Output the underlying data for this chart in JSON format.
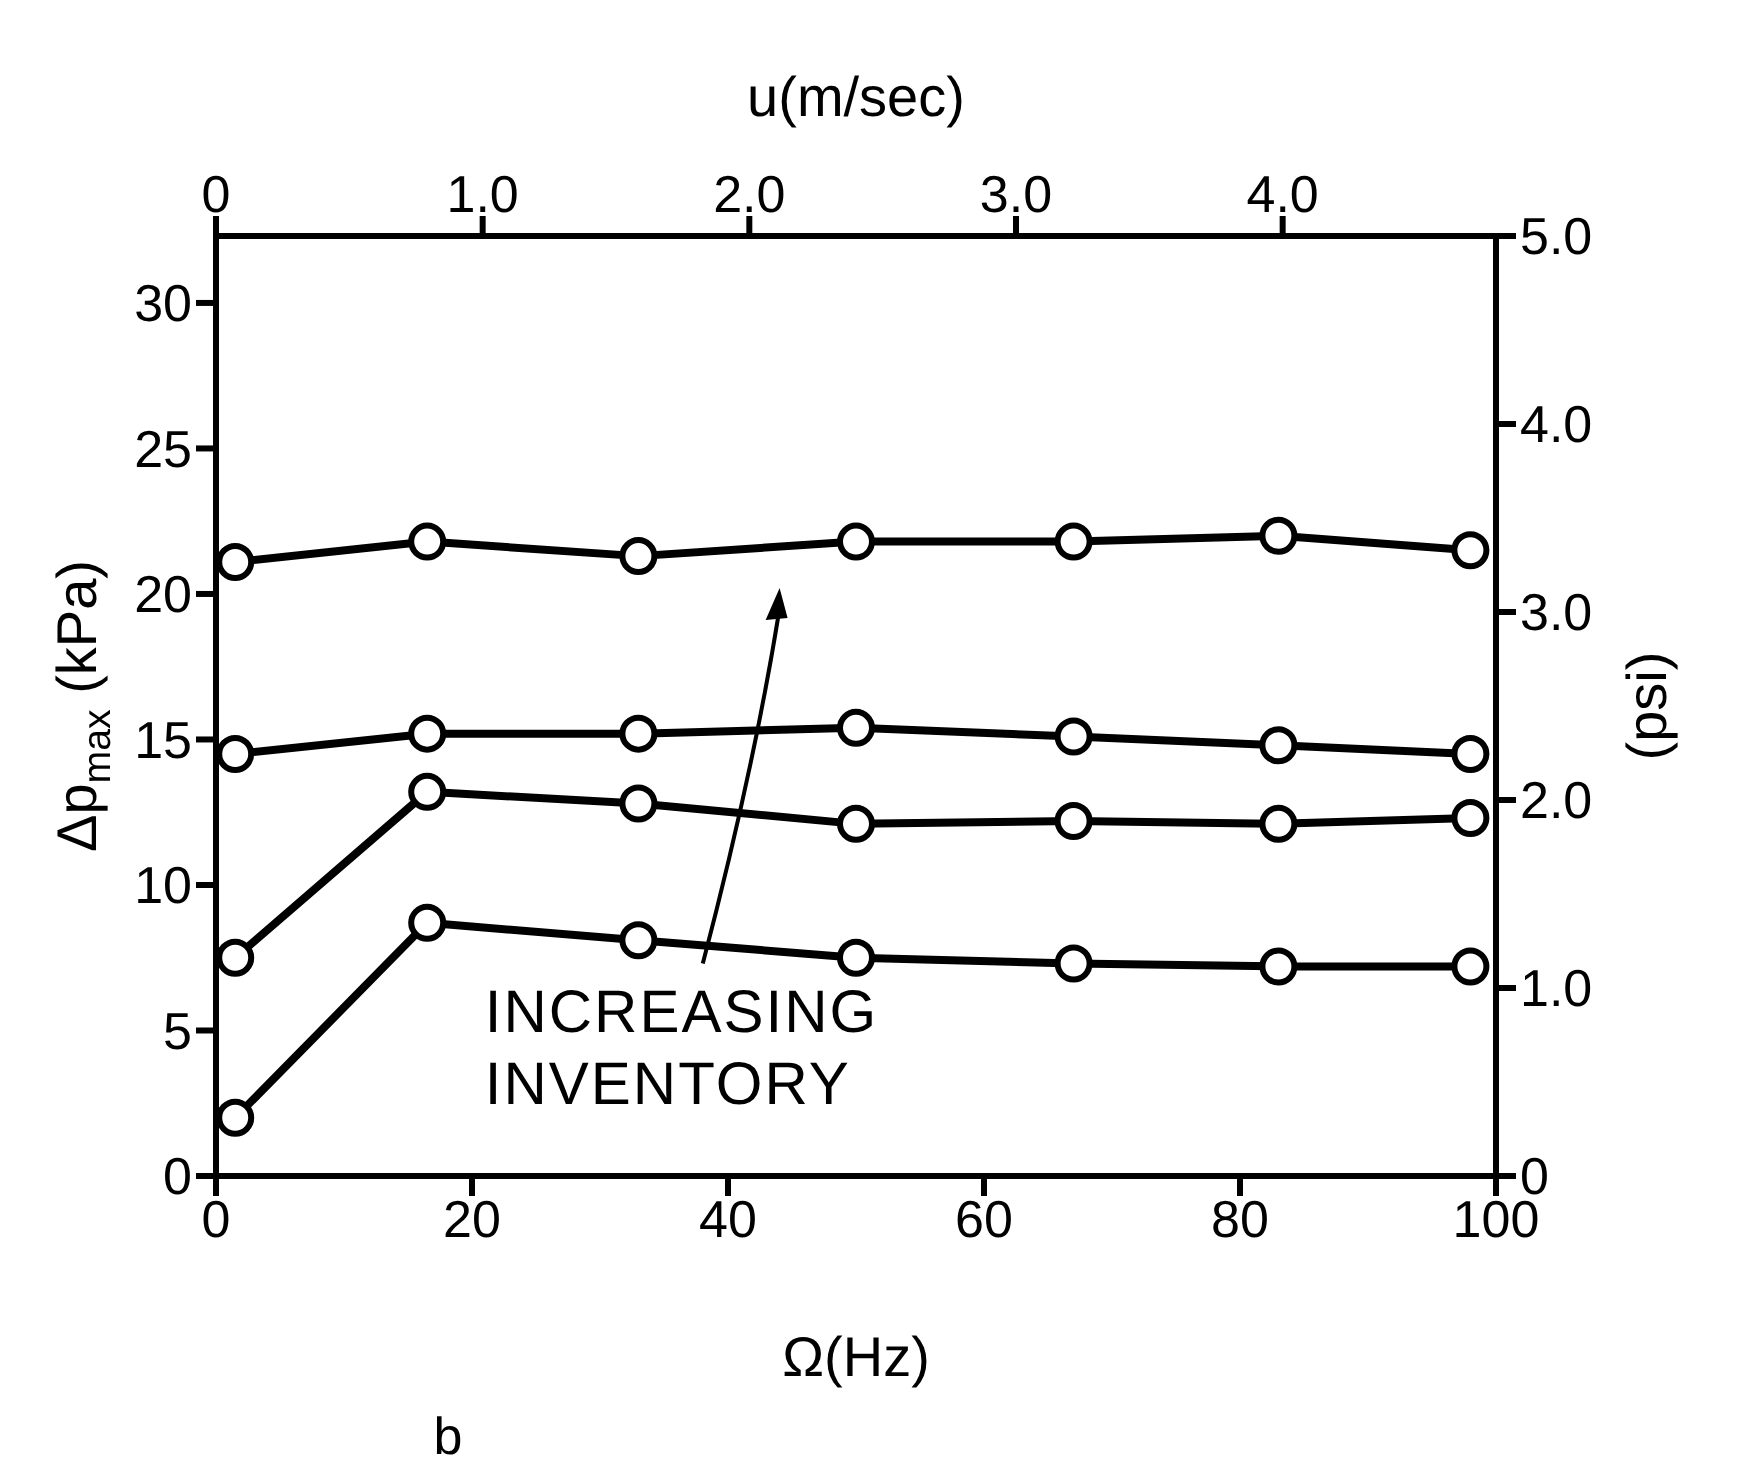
{
  "chart_data": {
    "type": "line",
    "xlabel": "Ω(Hz)",
    "x2label": "u(m/sec)",
    "ylabel": "Δp$_{max}$ (kPa)",
    "y2label": "(psi)",
    "x": [
      1.5,
      16.5,
      33,
      50,
      67,
      83,
      98
    ],
    "series": [
      {
        "color": "#000000",
        "values": [
          21.1,
          21.8,
          21.3,
          21.8,
          21.8,
          22.0,
          21.5
        ]
      },
      {
        "color": "#000000",
        "values": [
          14.5,
          15.2,
          15.2,
          15.4,
          15.1,
          14.8,
          14.5
        ]
      },
      {
        "color": "#000000",
        "values": [
          7.5,
          13.2,
          12.8,
          12.1,
          12.2,
          12.1,
          12.3
        ]
      },
      {
        "color": "#000000",
        "values": [
          2.0,
          8.7,
          8.1,
          7.5,
          7.3,
          7.2,
          7.2
        ]
      }
    ],
    "xlim": [
      0,
      100
    ],
    "xticks": [
      0,
      20,
      40,
      60,
      80,
      100
    ],
    "x2lim": [
      0,
      4.8
    ],
    "x2ticks": [
      0,
      {
        "value": 1,
        "label": "1.0"
      },
      {
        "value": 2,
        "label": "2.0"
      },
      {
        "value": 3,
        "label": "3.0"
      },
      {
        "value": 4,
        "label": "4.0"
      }
    ],
    "ylim": [
      0,
      32.3
    ],
    "yticks": [
      0,
      5,
      10,
      15,
      20,
      25,
      30
    ],
    "y2lim": [
      0,
      5
    ],
    "y2ticks": [
      0,
      {
        "value": 1,
        "label": "1.0"
      },
      {
        "value": 2,
        "label": "2.0"
      },
      {
        "value": 3,
        "label": "3.0"
      },
      {
        "value": 4,
        "label": "4.0"
      },
      {
        "value": 5,
        "label": "5.0"
      }
    ],
    "annotations": [
      "INCREASING\nINVENTORY",
      "b"
    ],
    "grid": false,
    "legend": false,
    "marker": "circle",
    "line_style": "solid"
  }
}
